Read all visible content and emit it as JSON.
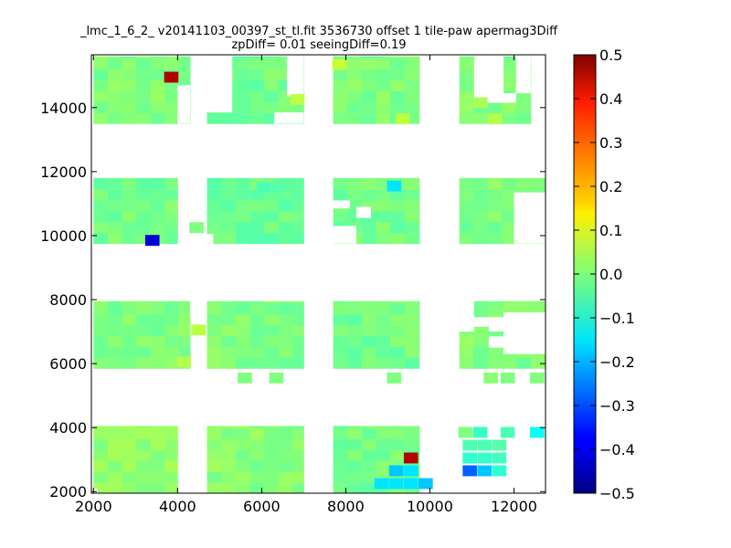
{
  "chart_data": {
    "type": "heatmap",
    "title": "_lmc_1_6_2_ v20141103_00397_st_tl.fit 3536730 offset 1 tile-paw apermag3Diff",
    "subtitle": "zpDiff= 0.01 seeingDiff=0.19",
    "xlabel": "",
    "ylabel": "",
    "xlim": [
      1950,
      12750
    ],
    "ylim": [
      1950,
      15650
    ],
    "x_ticks": [
      "2000",
      "4000",
      "6000",
      "8000",
      "10000",
      "12000"
    ],
    "y_ticks": [
      "2000",
      "4000",
      "6000",
      "8000",
      "10000",
      "12000",
      "14000"
    ],
    "colorbar": {
      "colormap": "jet",
      "range": [
        -0.5,
        0.5
      ],
      "ticks": [
        "0.5",
        "0.4",
        "0.3",
        "0.2",
        "0.1",
        "0.0",
        "−0.1",
        "−0.2",
        "−0.3",
        "−0.4",
        "−0.5"
      ]
    },
    "cell_size": 340,
    "blocks": [
      {
        "x": [
          2000,
          4000
        ],
        "y": [
          1950,
          4050
        ],
        "value": 0.02
      },
      {
        "x": [
          4700,
          7000
        ],
        "y": [
          1950,
          4050
        ],
        "value": 0.01
      },
      {
        "x": [
          7700,
          9750
        ],
        "y": [
          1950,
          4050
        ],
        "value": -0.01
      },
      {
        "x": [
          2000,
          4300
        ],
        "y": [
          5850,
          7950
        ],
        "value": 0.0
      },
      {
        "x": [
          4700,
          7000
        ],
        "y": [
          5850,
          7950
        ],
        "value": 0.0
      },
      {
        "x": [
          7700,
          9750
        ],
        "y": [
          5850,
          7950
        ],
        "value": -0.01
      },
      {
        "x": [
          10700,
          12750
        ],
        "y": [
          5850,
          7950
        ],
        "value": 0.0
      },
      {
        "x": [
          2000,
          4000
        ],
        "y": [
          9750,
          11800
        ],
        "value": -0.01
      },
      {
        "x": [
          4700,
          7000
        ],
        "y": [
          9750,
          11800
        ],
        "value": -0.02
      },
      {
        "x": [
          7700,
          9750
        ],
        "y": [
          9750,
          11800
        ],
        "value": -0.01
      },
      {
        "x": [
          10700,
          12750
        ],
        "y": [
          9750,
          11800
        ],
        "value": 0.0
      },
      {
        "x": [
          2000,
          4300
        ],
        "y": [
          13500,
          15600
        ],
        "value": 0.0
      },
      {
        "x": [
          4700,
          7000
        ],
        "y": [
          13500,
          15600
        ],
        "value": -0.01
      },
      {
        "x": [
          7700,
          9750
        ],
        "y": [
          13500,
          15600
        ],
        "value": 0.0
      },
      {
        "x": [
          10700,
          12400
        ],
        "y": [
          13500,
          15600
        ],
        "value": 0.0
      }
    ],
    "outliers": [
      {
        "x": 3850,
        "y": 14950,
        "value": 0.45
      },
      {
        "x": 3400,
        "y": 9850,
        "value": -0.42
      },
      {
        "x": 9150,
        "y": 11550,
        "value": -0.15
      },
      {
        "x": 9550,
        "y": 3050,
        "value": 0.45
      },
      {
        "x": 9200,
        "y": 2650,
        "value": -0.18
      },
      {
        "x": 9550,
        "y": 2650,
        "value": -0.15
      },
      {
        "x": 8850,
        "y": 2250,
        "value": -0.15
      },
      {
        "x": 9200,
        "y": 2250,
        "value": -0.15
      },
      {
        "x": 9550,
        "y": 2250,
        "value": -0.15
      },
      {
        "x": 9900,
        "y": 2250,
        "value": -0.18
      },
      {
        "x": 10950,
        "y": 2650,
        "value": -0.28
      },
      {
        "x": 11300,
        "y": 2650,
        "value": -0.18
      },
      {
        "x": 11650,
        "y": 2650,
        "value": -0.08
      },
      {
        "x": 10950,
        "y": 3050,
        "value": -0.08
      },
      {
        "x": 11300,
        "y": 3050,
        "value": -0.07
      },
      {
        "x": 11650,
        "y": 3050,
        "value": -0.06
      },
      {
        "x": 10950,
        "y": 3450,
        "value": -0.05
      },
      {
        "x": 11300,
        "y": 3450,
        "value": -0.05
      },
      {
        "x": 11650,
        "y": 3450,
        "value": -0.04
      },
      {
        "x": 10850,
        "y": 3850,
        "value": 0.0
      },
      {
        "x": 11200,
        "y": 3850,
        "value": -0.07
      },
      {
        "x": 11850,
        "y": 3850,
        "value": -0.05
      },
      {
        "x": 12550,
        "y": 3850,
        "value": -0.12
      },
      {
        "x": 4500,
        "y": 7050,
        "value": 0.06
      },
      {
        "x": 4150,
        "y": 6050,
        "value": 0.05
      },
      {
        "x": 4450,
        "y": 10250,
        "value": 0.0
      },
      {
        "x": 6050,
        "y": 11500,
        "value": -0.05
      },
      {
        "x": 6400,
        "y": 11500,
        "value": -0.04
      },
      {
        "x": 7850,
        "y": 15350,
        "value": 0.07
      },
      {
        "x": 6850,
        "y": 14250,
        "value": 0.06
      },
      {
        "x": 9350,
        "y": 13650,
        "value": 0.06
      },
      {
        "x": 11550,
        "y": 13650,
        "value": 0.05
      },
      {
        "x": 11200,
        "y": 14150,
        "value": 0.04
      },
      {
        "x": 5600,
        "y": 5550,
        "value": 0.0
      },
      {
        "x": 6350,
        "y": 5550,
        "value": 0.0
      },
      {
        "x": 9150,
        "y": 5550,
        "value": 0.0
      },
      {
        "x": 11450,
        "y": 5550,
        "value": 0.01
      },
      {
        "x": 11850,
        "y": 5550,
        "value": 0.0
      },
      {
        "x": 12550,
        "y": 5550,
        "value": 0.0
      }
    ],
    "masked": [
      {
        "x": [
          4000,
          4300
        ],
        "y": [
          13500,
          14700
        ]
      },
      {
        "x": [
          4700,
          5300
        ],
        "y": [
          13850,
          15600
        ]
      },
      {
        "x": [
          6600,
          7000
        ],
        "y": [
          14350,
          15600
        ]
      },
      {
        "x": [
          6300,
          7000
        ],
        "y": [
          13500,
          13850
        ]
      },
      {
        "x": [
          12050,
          12400
        ],
        "y": [
          14450,
          15600
        ]
      },
      {
        "x": [
          11050,
          11750
        ],
        "y": [
          14450,
          15600
        ]
      },
      {
        "x": [
          11050,
          12050
        ],
        "y": [
          14150,
          14450
        ]
      },
      {
        "x": [
          7700,
          8100
        ],
        "y": [
          10850,
          11100
        ]
      },
      {
        "x": [
          8250,
          8600
        ],
        "y": [
          10550,
          10900
        ]
      },
      {
        "x": [
          7700,
          8250
        ],
        "y": [
          9750,
          10300
        ]
      },
      {
        "x": [
          4700,
          4850
        ],
        "y": [
          9750,
          10050
        ]
      },
      {
        "x": [
          12000,
          12750
        ],
        "y": [
          9750,
          11350
        ]
      },
      {
        "x": [
          10700,
          11050
        ],
        "y": [
          7000,
          7950
        ]
      },
      {
        "x": [
          11050,
          11400
        ],
        "y": [
          7150,
          7450
        ]
      },
      {
        "x": [
          11400,
          11750
        ],
        "y": [
          7000,
          7450
        ]
      },
      {
        "x": [
          11750,
          12750
        ],
        "y": [
          6300,
          7600
        ]
      },
      {
        "x": [
          11400,
          11750
        ],
        "y": [
          6500,
          6850
        ]
      },
      {
        "x": [
          4300,
          4700
        ],
        "y": [
          7450,
          7950
        ]
      },
      {
        "x": [
          2000,
          2100
        ],
        "y": [
          1950,
          2100
        ]
      }
    ]
  }
}
